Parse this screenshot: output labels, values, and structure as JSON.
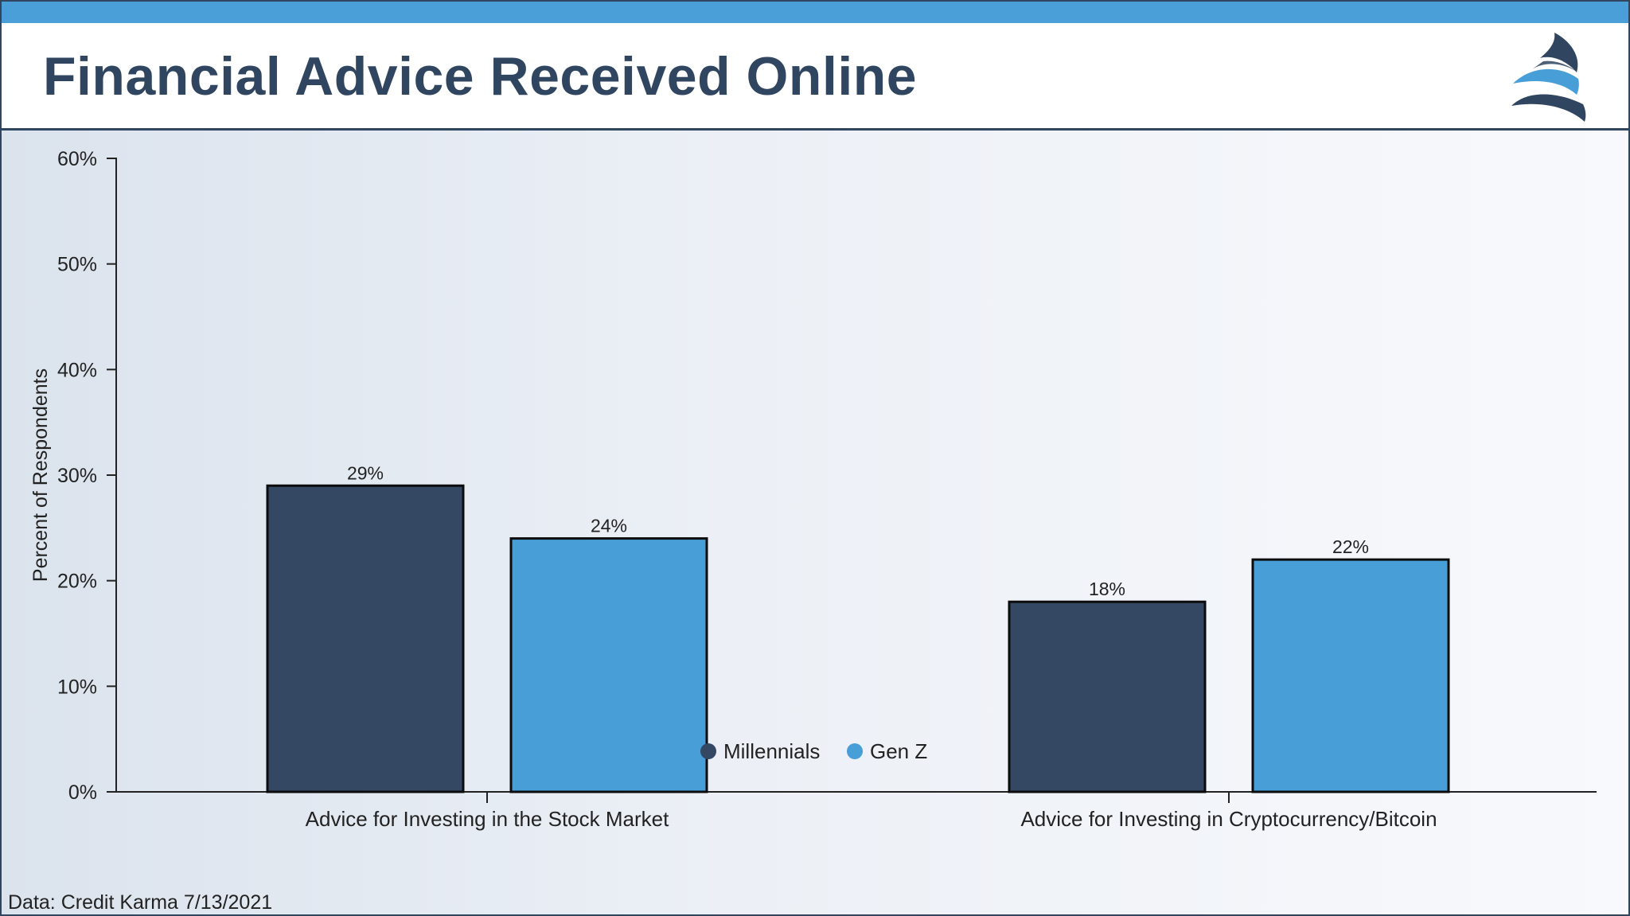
{
  "header": {
    "title": "Financial Advice Received Online"
  },
  "footer": {
    "source": "Data: Credit Karma 7/13/2021"
  },
  "colors": {
    "top_bar": "#4a9fd8",
    "title": "#2f4560",
    "millennials": "#344864",
    "gen_z": "#489ed7"
  },
  "chart_data": {
    "type": "bar",
    "title": "",
    "xlabel": "",
    "ylabel": "Percent of Respondents",
    "ylim": [
      0,
      60
    ],
    "yticks": [
      "0%",
      "10%",
      "20%",
      "30%",
      "40%",
      "50%",
      "60%"
    ],
    "categories": [
      "Advice for Investing in the Stock Market",
      "Advice for Investing in Cryptocurrency/Bitcoin"
    ],
    "series": [
      {
        "name": "Millennials",
        "color": "#344864",
        "values": [
          29,
          18
        ],
        "labels": [
          "29%",
          "18%"
        ]
      },
      {
        "name": "Gen Z",
        "color": "#489ed7",
        "values": [
          24,
          22
        ],
        "labels": [
          "24%",
          "22%"
        ]
      }
    ],
    "legend": "bottom-center",
    "grid": false
  }
}
